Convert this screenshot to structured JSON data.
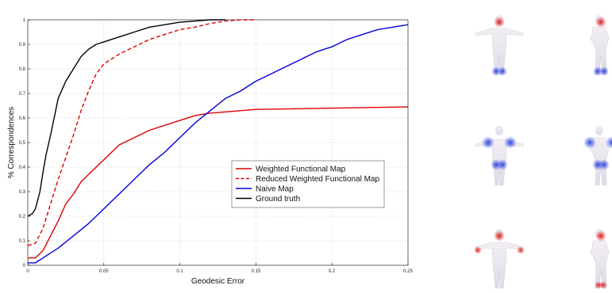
{
  "chart_data": {
    "type": "line",
    "xlabel": "Geodesic Error",
    "ylabel": "% Correspondences",
    "xlim": [
      0,
      0.25
    ],
    "ylim": [
      0,
      1
    ],
    "x_ticks": [
      "0",
      "0.05",
      "0.1",
      "0.15",
      "0.2",
      "0.25"
    ],
    "y_ticks": [
      "0",
      "0.1",
      "0.2",
      "0.3",
      "0.4",
      "0.5",
      "0.6",
      "0.7",
      "0.8",
      "0.9",
      "1"
    ],
    "grid": true,
    "legend_position": "lower-right",
    "series": [
      {
        "name": "Weighted Functional Map",
        "color": "#e00000",
        "dash": "solid",
        "x": [
          0,
          0.005,
          0.01,
          0.015,
          0.02,
          0.025,
          0.03,
          0.035,
          0.04,
          0.045,
          0.05,
          0.06,
          0.07,
          0.08,
          0.09,
          0.1,
          0.11,
          0.12,
          0.13,
          0.15,
          0.2,
          0.25
        ],
        "y": [
          0.03,
          0.03,
          0.06,
          0.12,
          0.18,
          0.25,
          0.29,
          0.34,
          0.37,
          0.4,
          0.43,
          0.49,
          0.52,
          0.55,
          0.57,
          0.59,
          0.61,
          0.62,
          0.625,
          0.635,
          0.64,
          0.645
        ]
      },
      {
        "name": "Reduced Weighted Functional Map",
        "color": "#e00000",
        "dash": "dashed",
        "x": [
          0,
          0.005,
          0.01,
          0.015,
          0.02,
          0.025,
          0.03,
          0.035,
          0.04,
          0.045,
          0.05,
          0.06,
          0.07,
          0.08,
          0.09,
          0.1,
          0.11,
          0.12,
          0.13,
          0.14,
          0.15
        ],
        "y": [
          0.08,
          0.09,
          0.15,
          0.25,
          0.35,
          0.44,
          0.53,
          0.63,
          0.71,
          0.78,
          0.82,
          0.86,
          0.89,
          0.92,
          0.94,
          0.96,
          0.97,
          0.985,
          0.995,
          1.0,
          1.0
        ]
      },
      {
        "name": "Naive Map",
        "color": "#0000e0",
        "dash": "solid",
        "x": [
          0,
          0.005,
          0.01,
          0.02,
          0.03,
          0.04,
          0.05,
          0.06,
          0.07,
          0.08,
          0.09,
          0.1,
          0.11,
          0.12,
          0.13,
          0.14,
          0.15,
          0.16,
          0.17,
          0.18,
          0.19,
          0.2,
          0.21,
          0.22,
          0.23,
          0.24,
          0.25
        ],
        "y": [
          0.01,
          0.01,
          0.03,
          0.07,
          0.12,
          0.17,
          0.23,
          0.29,
          0.35,
          0.41,
          0.46,
          0.52,
          0.58,
          0.63,
          0.68,
          0.71,
          0.75,
          0.78,
          0.81,
          0.84,
          0.87,
          0.89,
          0.92,
          0.94,
          0.96,
          0.97,
          0.98
        ]
      },
      {
        "name": "Ground truth",
        "color": "#000000",
        "dash": "solid",
        "x": [
          0,
          0.003,
          0.005,
          0.008,
          0.01,
          0.012,
          0.015,
          0.018,
          0.02,
          0.025,
          0.03,
          0.035,
          0.04,
          0.045,
          0.05,
          0.06,
          0.07,
          0.08,
          0.09,
          0.1,
          0.11,
          0.12,
          0.13
        ],
        "y": [
          0.2,
          0.21,
          0.23,
          0.3,
          0.38,
          0.45,
          0.53,
          0.62,
          0.68,
          0.75,
          0.8,
          0.85,
          0.88,
          0.9,
          0.91,
          0.93,
          0.95,
          0.97,
          0.98,
          0.99,
          0.995,
          1.0,
          1.0
        ]
      }
    ]
  },
  "figures": {
    "rows": 3,
    "colors": {
      "base": "#e6e6ee",
      "red": "#e02020",
      "blue": "#3b4fe0"
    },
    "items": [
      {
        "pose": "t-pose",
        "highlight": "head-red,feet-blue"
      },
      {
        "pose": "bent",
        "highlight": "head-red,feet-blue"
      },
      {
        "pose": "t-pose",
        "highlight": "shoulders-blue,thighs-blue"
      },
      {
        "pose": "bent",
        "highlight": "shoulders-blue,thighs-blue"
      },
      {
        "pose": "t-pose",
        "highlight": "head-red,hands-red"
      },
      {
        "pose": "bent",
        "highlight": "head-red,feet-red"
      }
    ]
  }
}
